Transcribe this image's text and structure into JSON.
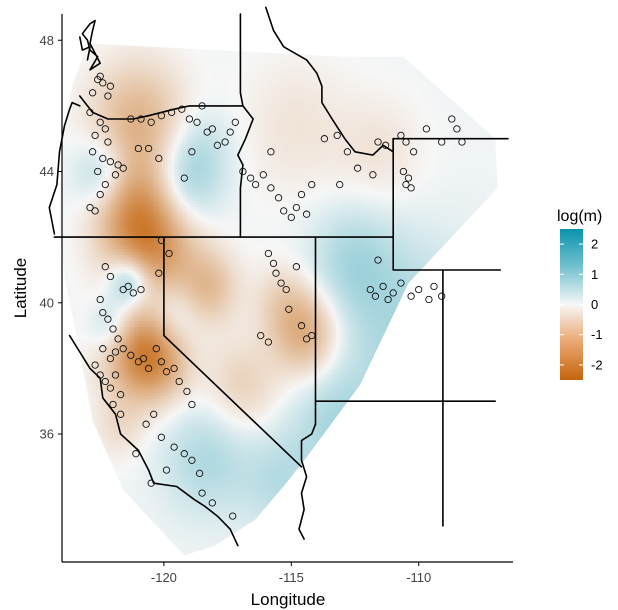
{
  "chart_data": {
    "type": "map",
    "xlabel": "Longitude",
    "ylabel": "Latitude",
    "xlim": [
      -124.0,
      -106.3
    ],
    "ylim": [
      32.1,
      48.8
    ],
    "x_ticks": [
      -120,
      -115,
      -110
    ],
    "x_tick_labels": [
      "-120",
      "-115",
      "-110"
    ],
    "y_ticks": [
      36,
      40,
      44,
      48
    ],
    "y_tick_labels": [
      "36",
      "40",
      "44",
      "48"
    ],
    "legend": {
      "title": "log(m)",
      "placement": "right",
      "range": [
        -2.5,
        2.5
      ],
      "ticks": [
        2,
        1,
        0,
        -1,
        -2
      ],
      "tick_labels": [
        "2",
        "1",
        "0",
        "-1",
        "-2"
      ],
      "colors": {
        "high": "#0a93ad",
        "mid": "#f7f7f7",
        "low": "#c4640c"
      }
    },
    "surface_anomalies": [
      {
        "lon": -121.1,
        "lat": 45.5,
        "value": -1.1,
        "spread": 1.3
      },
      {
        "lon": -121.2,
        "lat": 43.0,
        "value": -1.2,
        "spread": 1.1
      },
      {
        "lon": -122.4,
        "lat": 44.0,
        "value": 0.9,
        "spread": 0.8
      },
      {
        "lon": -119.4,
        "lat": 43.6,
        "value": 0.8,
        "spread": 1.0
      },
      {
        "lon": -120.5,
        "lat": 41.7,
        "value": -1.6,
        "spread": 1.2
      },
      {
        "lon": -121.4,
        "lat": 40.7,
        "value": 1.4,
        "spread": 0.6
      },
      {
        "lon": -122.1,
        "lat": 39.3,
        "value": 0.8,
        "spread": 0.6
      },
      {
        "lon": -121.2,
        "lat": 38.6,
        "value": -1.3,
        "spread": 1.0
      },
      {
        "lon": -120.3,
        "lat": 38.3,
        "value": -1.2,
        "spread": 0.9
      },
      {
        "lon": -119.8,
        "lat": 39.7,
        "value": 0.6,
        "spread": 0.8
      },
      {
        "lon": -118.3,
        "lat": 40.5,
        "value": -0.9,
        "spread": 0.8
      },
      {
        "lon": -117.0,
        "lat": 37.5,
        "value": -0.6,
        "spread": 1.0
      },
      {
        "lon": -114.5,
        "lat": 39.1,
        "value": -1.2,
        "spread": 0.9
      },
      {
        "lon": -115.4,
        "lat": 40.1,
        "value": -0.5,
        "spread": 0.8
      },
      {
        "lon": -114.9,
        "lat": 45.4,
        "value": -0.3,
        "spread": 1.5
      },
      {
        "lon": -110.3,
        "lat": 38.9,
        "value": 0.7,
        "spread": 2.0
      },
      {
        "lon": -112.6,
        "lat": 41.3,
        "value": 0.6,
        "spread": 1.2
      },
      {
        "lon": -118.4,
        "lat": 35.3,
        "value": 0.6,
        "spread": 1.2
      },
      {
        "lon": -115.5,
        "lat": 34.6,
        "value": 0.5,
        "spread": 1.1
      },
      {
        "lon": -113.3,
        "lat": 36.3,
        "value": 0.6,
        "spread": 1.2
      },
      {
        "lon": -121.8,
        "lat": 36.3,
        "value": -0.4,
        "spread": 0.7
      },
      {
        "lon": -118.6,
        "lat": 44.7,
        "value": 0.4,
        "spread": 0.9
      },
      {
        "lon": -111.6,
        "lat": 44.6,
        "value": -0.3,
        "spread": 1.2
      }
    ],
    "sample_points": [
      [
        -122.8,
        46.4
      ],
      [
        -122.6,
        46.8
      ],
      [
        -122.5,
        46.9
      ],
      [
        -122.4,
        46.7
      ],
      [
        -122.2,
        46.3
      ],
      [
        -122.1,
        46.6
      ],
      [
        -122.9,
        45.8
      ],
      [
        -122.5,
        45.5
      ],
      [
        -122.7,
        45.1
      ],
      [
        -122.3,
        45.3
      ],
      [
        -122.2,
        44.9
      ],
      [
        -122.8,
        44.6
      ],
      [
        -122.4,
        44.4
      ],
      [
        -122.6,
        44.0
      ],
      [
        -122.1,
        44.3
      ],
      [
        -122.3,
        43.6
      ],
      [
        -122.5,
        43.3
      ],
      [
        -122.9,
        42.9
      ],
      [
        -122.7,
        42.8
      ],
      [
        -121.8,
        44.2
      ],
      [
        -121.9,
        43.9
      ],
      [
        -121.6,
        44.1
      ],
      [
        -121.3,
        45.6
      ],
      [
        -120.9,
        45.6
      ],
      [
        -120.5,
        45.5
      ],
      [
        -120.1,
        45.7
      ],
      [
        -119.7,
        45.8
      ],
      [
        -119.3,
        45.9
      ],
      [
        -119.0,
        45.6
      ],
      [
        -118.7,
        45.5
      ],
      [
        -118.5,
        46.0
      ],
      [
        -118.3,
        45.2
      ],
      [
        -118.1,
        45.3
      ],
      [
        -117.9,
        44.8
      ],
      [
        -117.6,
        44.9
      ],
      [
        -117.4,
        45.2
      ],
      [
        -117.2,
        45.5
      ],
      [
        -118.9,
        44.6
      ],
      [
        -119.2,
        43.8
      ],
      [
        -120.2,
        44.4
      ],
      [
        -120.6,
        44.7
      ],
      [
        -121.0,
        44.7
      ],
      [
        -116.9,
        44.0
      ],
      [
        -116.6,
        43.8
      ],
      [
        -116.4,
        43.6
      ],
      [
        -116.1,
        43.9
      ],
      [
        -115.8,
        43.5
      ],
      [
        -115.5,
        43.2
      ],
      [
        -115.3,
        42.8
      ],
      [
        -115.0,
        42.6
      ],
      [
        -114.8,
        42.9
      ],
      [
        -114.6,
        43.3
      ],
      [
        -114.4,
        42.7
      ],
      [
        -114.2,
        43.6
      ],
      [
        -115.8,
        44.6
      ],
      [
        -113.7,
        45.0
      ],
      [
        -113.2,
        45.1
      ],
      [
        -112.8,
        44.6
      ],
      [
        -111.6,
        44.9
      ],
      [
        -111.3,
        44.8
      ],
      [
        -110.7,
        45.1
      ],
      [
        -110.5,
        44.9
      ],
      [
        -110.2,
        44.6
      ],
      [
        -109.7,
        45.3
      ],
      [
        -109.1,
        44.9
      ],
      [
        -108.7,
        45.6
      ],
      [
        -108.5,
        45.3
      ],
      [
        -108.3,
        44.9
      ],
      [
        -110.6,
        44.0
      ],
      [
        -110.4,
        43.8
      ],
      [
        -110.3,
        43.5
      ],
      [
        -110.5,
        43.6
      ],
      [
        -111.8,
        43.9
      ],
      [
        -112.4,
        44.1
      ],
      [
        -113.1,
        43.6
      ],
      [
        -122.3,
        41.1
      ],
      [
        -122.1,
        40.8
      ],
      [
        -121.6,
        40.4
      ],
      [
        -121.4,
        40.5
      ],
      [
        -121.2,
        40.3
      ],
      [
        -120.9,
        40.4
      ],
      [
        -122.5,
        40.1
      ],
      [
        -122.4,
        39.7
      ],
      [
        -122.2,
        39.5
      ],
      [
        -122.0,
        39.2
      ],
      [
        -121.8,
        38.9
      ],
      [
        -122.4,
        38.6
      ],
      [
        -122.1,
        38.3
      ],
      [
        -121.9,
        38.5
      ],
      [
        -121.6,
        38.6
      ],
      [
        -121.3,
        38.4
      ],
      [
        -121.0,
        38.2
      ],
      [
        -120.8,
        38.3
      ],
      [
        -120.6,
        38.0
      ],
      [
        -122.7,
        38.1
      ],
      [
        -122.5,
        37.8
      ],
      [
        -122.3,
        37.6
      ],
      [
        -122.1,
        37.4
      ],
      [
        -121.9,
        37.8
      ],
      [
        -121.7,
        37.2
      ],
      [
        -122.0,
        36.9
      ],
      [
        -121.7,
        36.6
      ],
      [
        -120.3,
        38.6
      ],
      [
        -120.1,
        38.2
      ],
      [
        -119.9,
        37.9
      ],
      [
        -119.6,
        38.0
      ],
      [
        -119.4,
        37.6
      ],
      [
        -119.1,
        37.3
      ],
      [
        -118.9,
        36.9
      ],
      [
        -120.4,
        36.6
      ],
      [
        -120.7,
        36.3
      ],
      [
        -120.1,
        35.9
      ],
      [
        -119.6,
        35.6
      ],
      [
        -119.2,
        35.4
      ],
      [
        -118.9,
        35.2
      ],
      [
        -118.6,
        34.8
      ],
      [
        -119.9,
        34.9
      ],
      [
        -120.5,
        34.5
      ],
      [
        -121.1,
        35.4
      ],
      [
        -118.5,
        34.2
      ],
      [
        -118.1,
        33.9
      ],
      [
        -117.3,
        33.5
      ],
      [
        -120.2,
        40.9
      ],
      [
        -120.1,
        41.9
      ],
      [
        -119.8,
        41.5
      ],
      [
        -115.9,
        41.5
      ],
      [
        -115.7,
        41.2
      ],
      [
        -115.6,
        40.9
      ],
      [
        -115.4,
        40.6
      ],
      [
        -115.2,
        40.4
      ],
      [
        -114.8,
        41.1
      ],
      [
        -115.1,
        39.8
      ],
      [
        -114.6,
        39.3
      ],
      [
        -114.2,
        39.0
      ],
      [
        -114.4,
        38.9
      ],
      [
        -115.9,
        38.8
      ],
      [
        -116.2,
        39.0
      ],
      [
        -111.6,
        41.3
      ],
      [
        -111.9,
        40.4
      ],
      [
        -111.7,
        40.2
      ],
      [
        -111.4,
        40.5
      ],
      [
        -111.0,
        40.3
      ],
      [
        -111.2,
        40.1
      ],
      [
        -110.7,
        40.6
      ],
      [
        -110.3,
        40.2
      ],
      [
        -110.0,
        40.4
      ],
      [
        -109.6,
        40.1
      ],
      [
        -109.4,
        40.5
      ],
      [
        -109.1,
        40.2
      ]
    ]
  }
}
